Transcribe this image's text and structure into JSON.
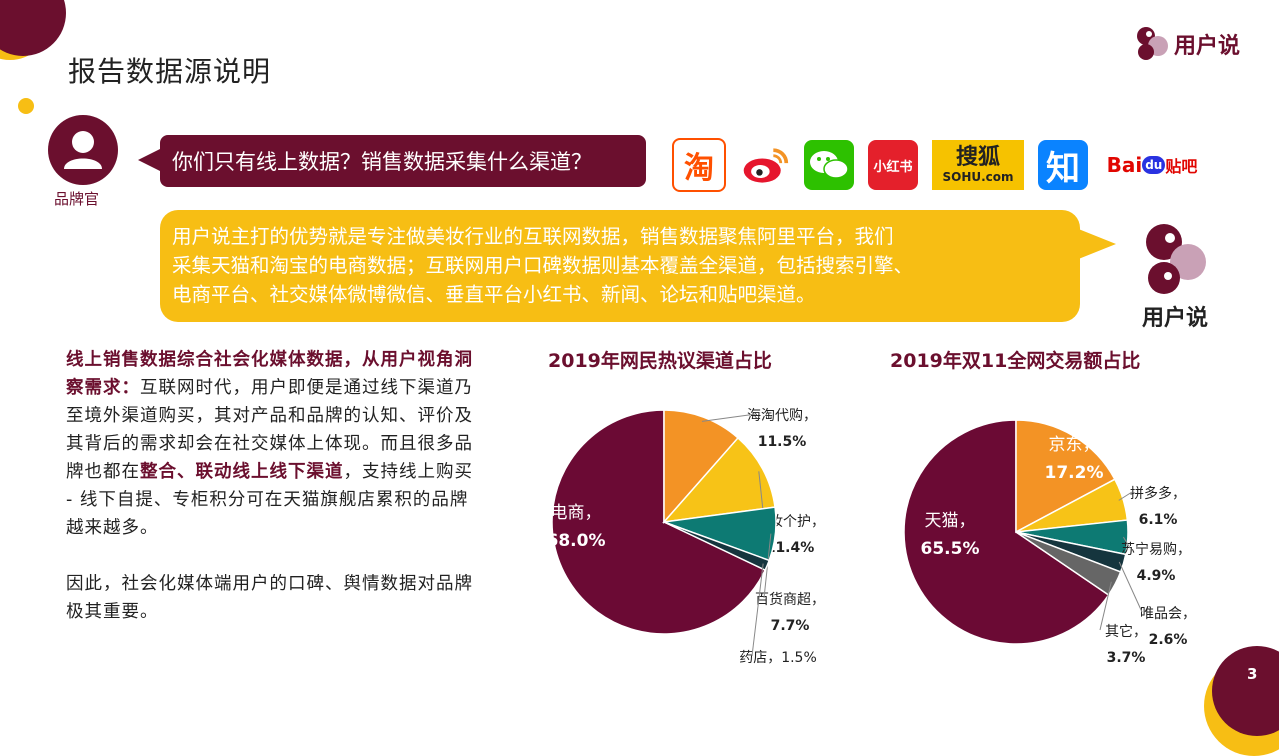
{
  "header": {
    "title": "报告数据源说明",
    "brand": "用户说"
  },
  "dialog": {
    "role_label": "品牌官",
    "question": "你们只有线上数据？销售数据采集什么渠道？",
    "answer_lines": [
      "用户说主打的优势就是专注做美妆行业的互联网数据，销售数据聚焦阿里平台，我们",
      "采集天猫和淘宝的电商数据；互联网用户口碑数据则基本覆盖全渠道，包括搜索引擎、",
      "电商平台、社交媒体微博微信、垂直平台小红书、新闻、论坛和贴吧渠道。"
    ],
    "answer_logo_label": "用户说"
  },
  "platform_icons": [
    {
      "name": "taobao-icon",
      "text": "淘",
      "color": "#ff5000"
    },
    {
      "name": "weibo-icon",
      "text": "",
      "color": "#e6162d"
    },
    {
      "name": "wechat-icon",
      "text": "",
      "color": "#2dc100"
    },
    {
      "name": "xiaohongshu-icon",
      "text": "小红书",
      "color": "#e4202b"
    },
    {
      "name": "sohu-icon",
      "text": "搜狐",
      "sub": "SOHU.com",
      "color": "#f6c200"
    },
    {
      "name": "zhihu-icon",
      "text": "知",
      "color": "#0a83ff"
    },
    {
      "name": "baidu-tieba-icon",
      "text": "Bai",
      "mid": "du",
      "tail": "贴吧",
      "color": "#e10601"
    }
  ],
  "body": {
    "p1_bold": "线上销售数据综合社会化媒体数据，从用户视角洞察需求：",
    "p1_text_a": "互联网时代，用户即便是通过线下渠道乃至境外渠道购买，其对产品和品牌的认知、评价及其背后的需求却会在社交媒体上体现。而且很多品牌也都在",
    "p1_bold2": "整合、联动线上线下渠道",
    "p1_text_b": "，支持线上购买 - 线下自提、专柜积分可在天猫旗舰店累积的品牌越来越多。",
    "p2": "因此，社会化媒体端用户的口碑、舆情数据对品牌极其重要。"
  },
  "chart_data": [
    {
      "type": "pie",
      "title": "2019年网民热议渠道占比",
      "series": [
        {
          "label": "电商",
          "value": 68.0,
          "display": "68.0%",
          "color": "#6b0a34"
        },
        {
          "label": "海淘代购",
          "value": 11.5,
          "display": "11.5%",
          "color": "#f39325"
        },
        {
          "label": "美妆个护",
          "value": 11.4,
          "display": "11.4%",
          "color": "#f7c317"
        },
        {
          "label": "百货商超",
          "value": 7.7,
          "display": "7.7%",
          "color": "#0d7a73"
        },
        {
          "label": "药店",
          "value": 1.5,
          "display": "1.5%",
          "color": "#15353e"
        }
      ]
    },
    {
      "type": "pie",
      "title": "2019年双11全网交易额占比",
      "series": [
        {
          "label": "天猫",
          "value": 65.5,
          "display": "65.5%",
          "color": "#6b0a34"
        },
        {
          "label": "京东",
          "value": 17.2,
          "display": "17.2%",
          "color": "#f39325"
        },
        {
          "label": "拼多多",
          "value": 6.1,
          "display": "6.1%",
          "color": "#f7c317"
        },
        {
          "label": "苏宁易购",
          "value": 4.9,
          "display": "4.9%",
          "color": "#0d7a73"
        },
        {
          "label": "唯品会",
          "value": 2.6,
          "display": "2.6%",
          "color": "#15353e"
        },
        {
          "label": "其它",
          "value": 3.7,
          "display": "3.7%",
          "color": "#666666"
        }
      ]
    }
  ],
  "footer": {
    "page": "3"
  }
}
